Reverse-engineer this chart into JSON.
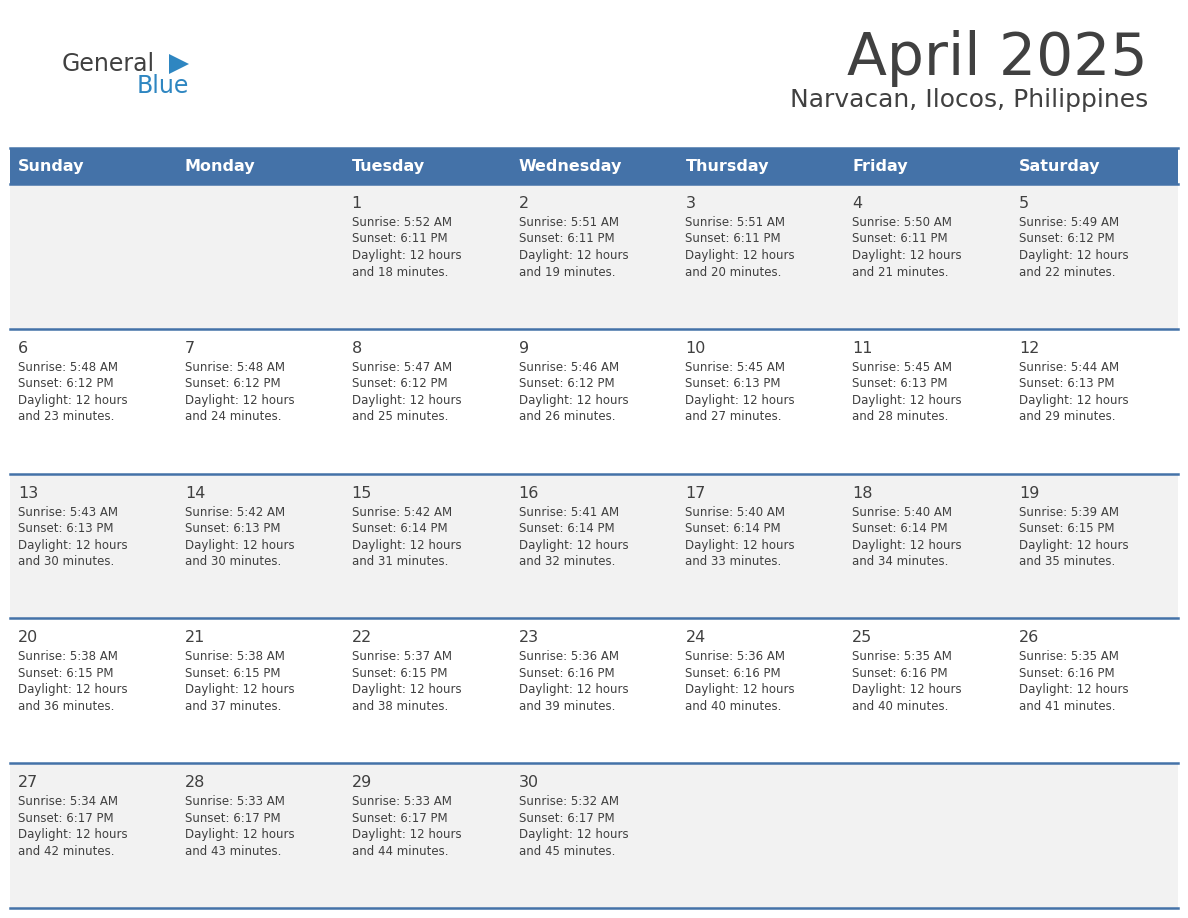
{
  "title": "April 2025",
  "subtitle": "Narvacan, Ilocos, Philippines",
  "header_color": "#4472A8",
  "header_text_color": "#FFFFFF",
  "header_days": [
    "Sunday",
    "Monday",
    "Tuesday",
    "Wednesday",
    "Thursday",
    "Friday",
    "Saturday"
  ],
  "row_bg_light": "#F2F2F2",
  "row_bg_white": "#FFFFFF",
  "border_color": "#4472A8",
  "text_color": "#404040",
  "logo_general_color": "#404040",
  "logo_blue_color": "#2E86C1",
  "title_color": "#404040",
  "subtitle_color": "#404040",
  "calendar": [
    [
      {
        "day": "",
        "info": ""
      },
      {
        "day": "",
        "info": ""
      },
      {
        "day": "1",
        "info": "Sunrise: 5:52 AM\nSunset: 6:11 PM\nDaylight: 12 hours\nand 18 minutes."
      },
      {
        "day": "2",
        "info": "Sunrise: 5:51 AM\nSunset: 6:11 PM\nDaylight: 12 hours\nand 19 minutes."
      },
      {
        "day": "3",
        "info": "Sunrise: 5:51 AM\nSunset: 6:11 PM\nDaylight: 12 hours\nand 20 minutes."
      },
      {
        "day": "4",
        "info": "Sunrise: 5:50 AM\nSunset: 6:11 PM\nDaylight: 12 hours\nand 21 minutes."
      },
      {
        "day": "5",
        "info": "Sunrise: 5:49 AM\nSunset: 6:12 PM\nDaylight: 12 hours\nand 22 minutes."
      }
    ],
    [
      {
        "day": "6",
        "info": "Sunrise: 5:48 AM\nSunset: 6:12 PM\nDaylight: 12 hours\nand 23 minutes."
      },
      {
        "day": "7",
        "info": "Sunrise: 5:48 AM\nSunset: 6:12 PM\nDaylight: 12 hours\nand 24 minutes."
      },
      {
        "day": "8",
        "info": "Sunrise: 5:47 AM\nSunset: 6:12 PM\nDaylight: 12 hours\nand 25 minutes."
      },
      {
        "day": "9",
        "info": "Sunrise: 5:46 AM\nSunset: 6:12 PM\nDaylight: 12 hours\nand 26 minutes."
      },
      {
        "day": "10",
        "info": "Sunrise: 5:45 AM\nSunset: 6:13 PM\nDaylight: 12 hours\nand 27 minutes."
      },
      {
        "day": "11",
        "info": "Sunrise: 5:45 AM\nSunset: 6:13 PM\nDaylight: 12 hours\nand 28 minutes."
      },
      {
        "day": "12",
        "info": "Sunrise: 5:44 AM\nSunset: 6:13 PM\nDaylight: 12 hours\nand 29 minutes."
      }
    ],
    [
      {
        "day": "13",
        "info": "Sunrise: 5:43 AM\nSunset: 6:13 PM\nDaylight: 12 hours\nand 30 minutes."
      },
      {
        "day": "14",
        "info": "Sunrise: 5:42 AM\nSunset: 6:13 PM\nDaylight: 12 hours\nand 30 minutes."
      },
      {
        "day": "15",
        "info": "Sunrise: 5:42 AM\nSunset: 6:14 PM\nDaylight: 12 hours\nand 31 minutes."
      },
      {
        "day": "16",
        "info": "Sunrise: 5:41 AM\nSunset: 6:14 PM\nDaylight: 12 hours\nand 32 minutes."
      },
      {
        "day": "17",
        "info": "Sunrise: 5:40 AM\nSunset: 6:14 PM\nDaylight: 12 hours\nand 33 minutes."
      },
      {
        "day": "18",
        "info": "Sunrise: 5:40 AM\nSunset: 6:14 PM\nDaylight: 12 hours\nand 34 minutes."
      },
      {
        "day": "19",
        "info": "Sunrise: 5:39 AM\nSunset: 6:15 PM\nDaylight: 12 hours\nand 35 minutes."
      }
    ],
    [
      {
        "day": "20",
        "info": "Sunrise: 5:38 AM\nSunset: 6:15 PM\nDaylight: 12 hours\nand 36 minutes."
      },
      {
        "day": "21",
        "info": "Sunrise: 5:38 AM\nSunset: 6:15 PM\nDaylight: 12 hours\nand 37 minutes."
      },
      {
        "day": "22",
        "info": "Sunrise: 5:37 AM\nSunset: 6:15 PM\nDaylight: 12 hours\nand 38 minutes."
      },
      {
        "day": "23",
        "info": "Sunrise: 5:36 AM\nSunset: 6:16 PM\nDaylight: 12 hours\nand 39 minutes."
      },
      {
        "day": "24",
        "info": "Sunrise: 5:36 AM\nSunset: 6:16 PM\nDaylight: 12 hours\nand 40 minutes."
      },
      {
        "day": "25",
        "info": "Sunrise: 5:35 AM\nSunset: 6:16 PM\nDaylight: 12 hours\nand 40 minutes."
      },
      {
        "day": "26",
        "info": "Sunrise: 5:35 AM\nSunset: 6:16 PM\nDaylight: 12 hours\nand 41 minutes."
      }
    ],
    [
      {
        "day": "27",
        "info": "Sunrise: 5:34 AM\nSunset: 6:17 PM\nDaylight: 12 hours\nand 42 minutes."
      },
      {
        "day": "28",
        "info": "Sunrise: 5:33 AM\nSunset: 6:17 PM\nDaylight: 12 hours\nand 43 minutes."
      },
      {
        "day": "29",
        "info": "Sunrise: 5:33 AM\nSunset: 6:17 PM\nDaylight: 12 hours\nand 44 minutes."
      },
      {
        "day": "30",
        "info": "Sunrise: 5:32 AM\nSunset: 6:17 PM\nDaylight: 12 hours\nand 45 minutes."
      },
      {
        "day": "",
        "info": ""
      },
      {
        "day": "",
        "info": ""
      },
      {
        "day": "",
        "info": ""
      }
    ]
  ]
}
